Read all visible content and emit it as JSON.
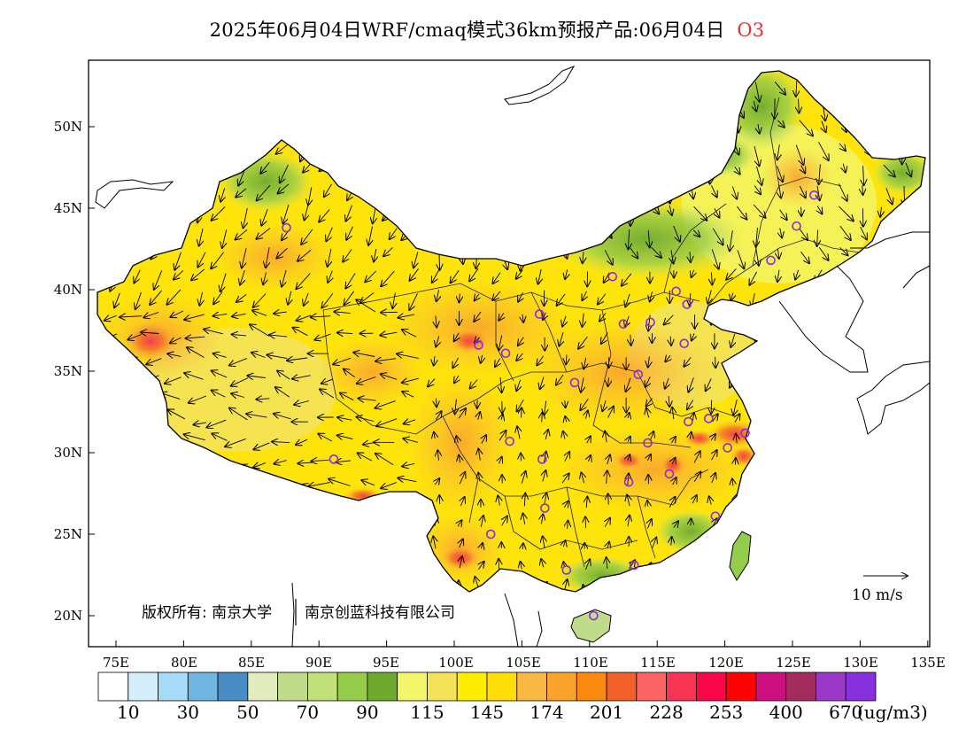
{
  "title": {
    "main": "2025年06月04日WRF/cmaq模式36km预报产品:06月04日",
    "pollutant": "O3"
  },
  "axes": {
    "lon_labels": [
      "75E",
      "80E",
      "85E",
      "90E",
      "95E",
      "100E",
      "105E",
      "110E",
      "115E",
      "120E",
      "125E",
      "130E",
      "135E"
    ],
    "lat_labels": [
      "20N",
      "25N",
      "30N",
      "35N",
      "40N",
      "45N",
      "50N"
    ]
  },
  "copyright": {
    "left": "版权所有: 南京大学",
    "right": "南京创蓝科技有限公司"
  },
  "wind_scale": {
    "label": "10 m/s"
  },
  "colorbar": {
    "unit": "(ug/m3)",
    "labels": [
      "10",
      "30",
      "50",
      "70",
      "90",
      "115",
      "145",
      "174",
      "201",
      "228",
      "253",
      "400",
      "670"
    ],
    "colors": [
      "#ffffff",
      "#d4eefc",
      "#a6daf6",
      "#70b5e0",
      "#4a8cc4",
      "#e2ecbe",
      "#c0dc8a",
      "#c2e07a",
      "#96cc4c",
      "#6eaa30",
      "#f3f56a",
      "#f4e25a",
      "#fdee00",
      "#fede08",
      "#f8b844",
      "#faa32c",
      "#fb8a10",
      "#f2602c",
      "#fa6464",
      "#f83454",
      "#f8084a",
      "#fc0404",
      "#cc1080",
      "#a22c5c",
      "#9a38c8",
      "#8830de"
    ]
  },
  "stations": [
    {
      "lon": 87.6,
      "lat": 43.8
    },
    {
      "lon": 91.1,
      "lat": 29.6
    },
    {
      "lon": 101.8,
      "lat": 36.6
    },
    {
      "lon": 103.8,
      "lat": 36.1
    },
    {
      "lon": 106.3,
      "lat": 38.5
    },
    {
      "lon": 111.7,
      "lat": 40.8
    },
    {
      "lon": 112.5,
      "lat": 37.9
    },
    {
      "lon": 114.5,
      "lat": 38.0
    },
    {
      "lon": 116.4,
      "lat": 39.9
    },
    {
      "lon": 117.2,
      "lat": 39.1
    },
    {
      "lon": 123.4,
      "lat": 41.8
    },
    {
      "lon": 125.3,
      "lat": 43.9
    },
    {
      "lon": 126.6,
      "lat": 45.8
    },
    {
      "lon": 117.0,
      "lat": 36.7
    },
    {
      "lon": 113.6,
      "lat": 34.8
    },
    {
      "lon": 108.9,
      "lat": 34.3
    },
    {
      "lon": 104.1,
      "lat": 30.7
    },
    {
      "lon": 106.5,
      "lat": 29.6
    },
    {
      "lon": 106.7,
      "lat": 26.6
    },
    {
      "lon": 102.7,
      "lat": 25.0
    },
    {
      "lon": 108.3,
      "lat": 22.8
    },
    {
      "lon": 113.3,
      "lat": 23.1
    },
    {
      "lon": 110.3,
      "lat": 20.0
    },
    {
      "lon": 119.3,
      "lat": 26.1
    },
    {
      "lon": 115.9,
      "lat": 28.7
    },
    {
      "lon": 112.9,
      "lat": 28.2
    },
    {
      "lon": 114.3,
      "lat": 30.6
    },
    {
      "lon": 117.3,
      "lat": 31.9
    },
    {
      "lon": 118.8,
      "lat": 32.1
    },
    {
      "lon": 120.2,
      "lat": 30.3
    },
    {
      "lon": 121.5,
      "lat": 31.2
    }
  ]
}
